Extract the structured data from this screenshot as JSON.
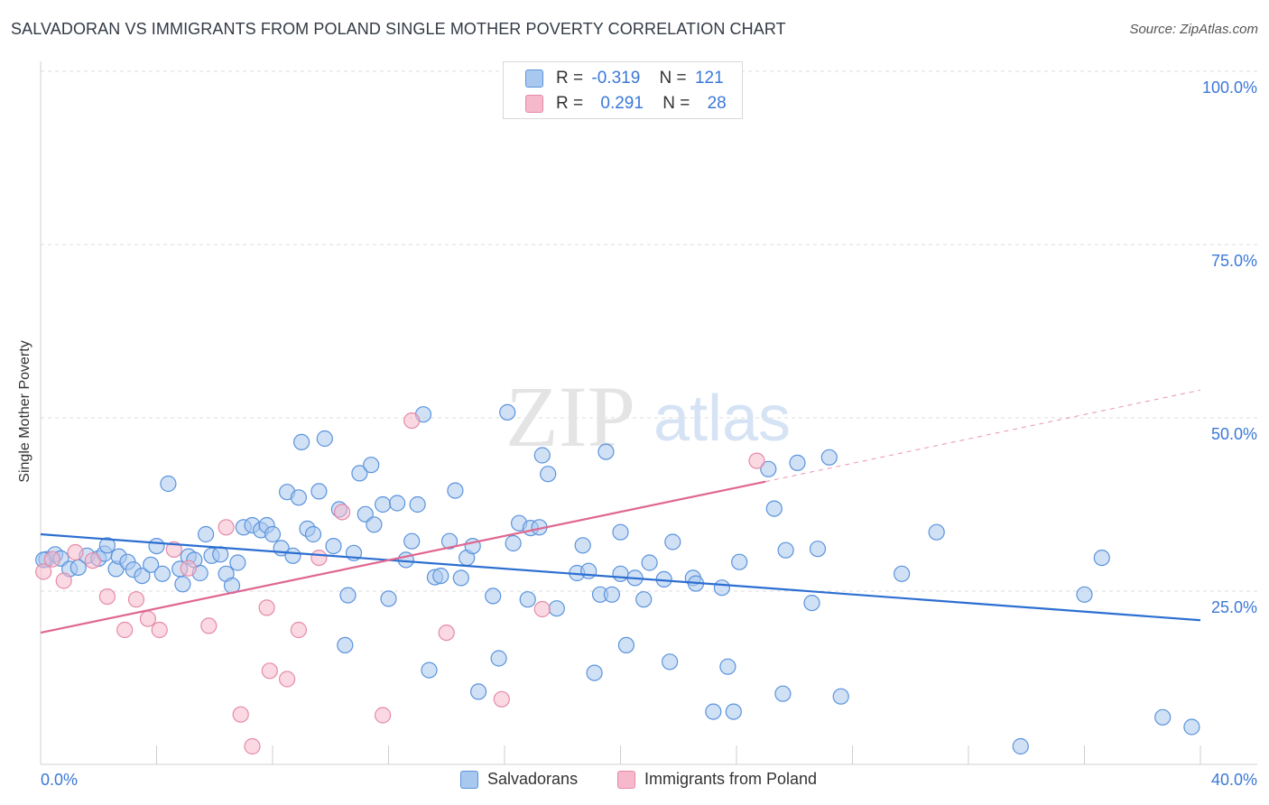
{
  "title": "SALVADORAN VS IMMIGRANTS FROM POLAND SINGLE MOTHER POVERTY CORRELATION CHART",
  "source": "Source: ZipAtlas.com",
  "watermark": {
    "zip": "ZIP",
    "atlas": "atlas"
  },
  "colors": {
    "blue_fill": "#a9c8ef",
    "blue_stroke": "#5b93dc",
    "blue_line": "#2c6fd1",
    "pink_fill": "#f6b9cc",
    "pink_stroke": "#e58aa8",
    "pink_line": "#e0668f",
    "axis_text": "#3b78d8",
    "grid": "#dcdcdc"
  },
  "legend_top": [
    {
      "r_label": "R =",
      "r_value": "-0.319",
      "n_label": "N =",
      "n_value": "121"
    },
    {
      "r_label": "R =",
      "r_value": "0.291",
      "n_label": "N =",
      "n_value": "28"
    }
  ],
  "chart_data": {
    "type": "scatter",
    "title": "SALVADORAN VS IMMIGRANTS FROM POLAND SINGLE MOTHER POVERTY CORRELATION CHART",
    "xlabel": "",
    "ylabel": "Single Mother Poverty",
    "xlim": [
      0,
      40
    ],
    "ylim": [
      0,
      100
    ],
    "x_tick_labels": [
      "0.0%",
      "40.0%"
    ],
    "y_tick_labels": [
      "25.0%",
      "50.0%",
      "75.0%",
      "100.0%"
    ],
    "y_ticks": [
      25,
      50,
      75,
      100
    ],
    "x_minor_ticks": [
      4,
      8,
      12,
      16,
      20,
      24,
      28,
      32,
      36,
      40
    ],
    "grid": true,
    "legend_position": "bottom",
    "series": [
      {
        "name": "Salvadorans",
        "trend": {
          "x": [
            0,
            40
          ],
          "y": [
            33.2,
            20.8
          ]
        },
        "points": [
          [
            0.2,
            29.6
          ],
          [
            0.5,
            30.3
          ],
          [
            0.7,
            29.7
          ],
          [
            1.0,
            28.2
          ],
          [
            1.3,
            28.4
          ],
          [
            1.6,
            30.1
          ],
          [
            2.0,
            29.7
          ],
          [
            2.2,
            30.4
          ],
          [
            2.3,
            31.6
          ],
          [
            2.6,
            28.2
          ],
          [
            2.7,
            30.0
          ],
          [
            3.0,
            29.2
          ],
          [
            3.2,
            28.1
          ],
          [
            3.5,
            27.2
          ],
          [
            3.8,
            28.8
          ],
          [
            4.0,
            31.5
          ],
          [
            4.2,
            27.5
          ],
          [
            4.4,
            40.5
          ],
          [
            4.8,
            28.2
          ],
          [
            4.9,
            26.0
          ],
          [
            5.1,
            30.0
          ],
          [
            5.3,
            29.5
          ],
          [
            5.5,
            27.6
          ],
          [
            5.7,
            33.2
          ],
          [
            5.9,
            30.1
          ],
          [
            6.2,
            30.3
          ],
          [
            6.4,
            27.5
          ],
          [
            6.6,
            25.8
          ],
          [
            6.8,
            29.1
          ],
          [
            7.0,
            34.2
          ],
          [
            7.3,
            34.5
          ],
          [
            7.6,
            33.8
          ],
          [
            7.8,
            34.5
          ],
          [
            8.0,
            33.2
          ],
          [
            8.3,
            31.2
          ],
          [
            8.5,
            39.3
          ],
          [
            8.7,
            30.1
          ],
          [
            8.9,
            38.5
          ],
          [
            9.0,
            46.5
          ],
          [
            9.2,
            34.0
          ],
          [
            9.4,
            33.2
          ],
          [
            9.6,
            39.4
          ],
          [
            9.8,
            47.0
          ],
          [
            10.1,
            31.5
          ],
          [
            10.3,
            36.8
          ],
          [
            10.5,
            17.2
          ],
          [
            10.6,
            24.4
          ],
          [
            10.8,
            30.5
          ],
          [
            11.0,
            42.0
          ],
          [
            11.2,
            36.1
          ],
          [
            11.4,
            43.2
          ],
          [
            11.5,
            34.6
          ],
          [
            11.8,
            37.5
          ],
          [
            12.0,
            23.9
          ],
          [
            12.3,
            37.7
          ],
          [
            12.6,
            29.5
          ],
          [
            12.8,
            32.2
          ],
          [
            13.0,
            37.5
          ],
          [
            13.2,
            50.5
          ],
          [
            13.4,
            13.6
          ],
          [
            13.6,
            27.0
          ],
          [
            13.8,
            27.2
          ],
          [
            14.1,
            32.2
          ],
          [
            14.3,
            39.5
          ],
          [
            14.5,
            26.9
          ],
          [
            14.7,
            29.8
          ],
          [
            14.9,
            31.5
          ],
          [
            15.1,
            10.5
          ],
          [
            15.6,
            24.3
          ],
          [
            15.8,
            15.3
          ],
          [
            16.1,
            50.8
          ],
          [
            16.3,
            31.9
          ],
          [
            16.5,
            34.8
          ],
          [
            16.8,
            23.8
          ],
          [
            16.9,
            34.1
          ],
          [
            17.2,
            34.2
          ],
          [
            17.3,
            44.6
          ],
          [
            17.5,
            41.9
          ],
          [
            17.8,
            22.5
          ],
          [
            18.5,
            27.6
          ],
          [
            18.7,
            31.6
          ],
          [
            18.9,
            27.9
          ],
          [
            19.1,
            13.2
          ],
          [
            19.3,
            24.5
          ],
          [
            19.5,
            45.1
          ],
          [
            19.7,
            24.5
          ],
          [
            20.0,
            27.5
          ],
          [
            20.0,
            33.5
          ],
          [
            20.2,
            17.2
          ],
          [
            20.5,
            26.9
          ],
          [
            20.8,
            23.8
          ],
          [
            21.0,
            29.1
          ],
          [
            21.5,
            26.7
          ],
          [
            21.7,
            14.8
          ],
          [
            21.8,
            32.1
          ],
          [
            22.5,
            26.9
          ],
          [
            22.6,
            26.1
          ],
          [
            23.2,
            7.6
          ],
          [
            23.5,
            25.5
          ],
          [
            23.7,
            14.1
          ],
          [
            23.9,
            7.6
          ],
          [
            24.1,
            29.2
          ],
          [
            25.1,
            42.6
          ],
          [
            25.3,
            36.9
          ],
          [
            25.6,
            10.2
          ],
          [
            25.7,
            30.9
          ],
          [
            26.1,
            43.5
          ],
          [
            26.6,
            23.3
          ],
          [
            26.8,
            31.1
          ],
          [
            27.2,
            44.3
          ],
          [
            27.6,
            9.8
          ],
          [
            29.7,
            27.5
          ],
          [
            30.9,
            33.5
          ],
          [
            33.8,
            2.6
          ],
          [
            36.0,
            24.5
          ],
          [
            36.6,
            29.8
          ],
          [
            38.7,
            6.8
          ],
          [
            39.7,
            5.4
          ],
          [
            0.1,
            29.5
          ]
        ]
      },
      {
        "name": "Immigrants from Poland",
        "trend": {
          "x": [
            0,
            25
          ],
          "y": [
            19.0,
            40.8
          ]
        },
        "trend_dashed": {
          "x": [
            25,
            40
          ],
          "y": [
            40.8,
            54.0
          ]
        },
        "points": [
          [
            0.1,
            27.8
          ],
          [
            0.4,
            29.6
          ],
          [
            0.8,
            26.5
          ],
          [
            1.2,
            30.6
          ],
          [
            1.8,
            29.4
          ],
          [
            2.3,
            24.2
          ],
          [
            2.9,
            19.4
          ],
          [
            3.3,
            23.8
          ],
          [
            3.7,
            21.0
          ],
          [
            4.1,
            19.4
          ],
          [
            4.6,
            31.0
          ],
          [
            5.1,
            28.3
          ],
          [
            5.8,
            20.0
          ],
          [
            6.4,
            34.2
          ],
          [
            6.9,
            7.2
          ],
          [
            7.3,
            2.6
          ],
          [
            7.8,
            22.6
          ],
          [
            7.9,
            13.5
          ],
          [
            8.5,
            12.3
          ],
          [
            8.9,
            19.4
          ],
          [
            9.6,
            29.8
          ],
          [
            10.4,
            36.4
          ],
          [
            11.8,
            7.1
          ],
          [
            12.8,
            49.6
          ],
          [
            14.0,
            19.0
          ],
          [
            15.9,
            9.4
          ],
          [
            17.3,
            22.4
          ],
          [
            24.7,
            43.8
          ]
        ]
      }
    ]
  },
  "legend_bottom": [
    "Salvadorans",
    "Immigrants from Poland"
  ]
}
